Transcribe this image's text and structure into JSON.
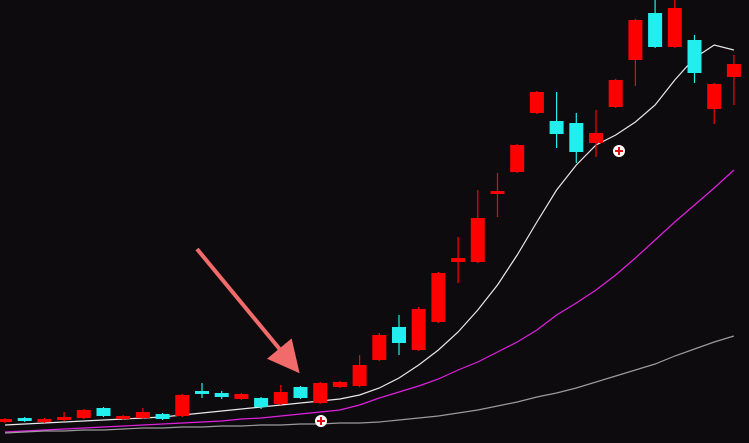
{
  "chart_data": {
    "type": "candlestick",
    "up_color": "#ff0000",
    "down_color": "#22eeee",
    "ylim": [
      0,
      443
    ],
    "open": [
      21,
      25,
      21,
      23,
      25,
      35,
      24,
      25,
      29,
      27,
      52,
      50,
      44,
      45,
      39,
      56,
      40,
      56,
      57,
      83,
      116,
      93,
      121,
      181,
      181,
      249,
      271,
      330,
      322,
      320,
      300,
      336,
      383,
      430,
      396,
      403,
      334,
      366
    ],
    "high": [
      25,
      26,
      25,
      31,
      34,
      36,
      28,
      35,
      30,
      49,
      60,
      52,
      50,
      46,
      58,
      57,
      61,
      62,
      88,
      110,
      128,
      136,
      171,
      206,
      253,
      270,
      299,
      352,
      351,
      330,
      333,
      364,
      424,
      443,
      443,
      408,
      360,
      388
    ],
    "low": [
      20,
      21,
      20,
      22,
      24,
      26,
      23,
      24,
      23,
      26,
      45,
      44,
      43,
      34,
      38,
      44,
      39,
      55,
      56,
      82,
      88,
      92,
      120,
      160,
      180,
      226,
      270,
      329,
      295,
      280,
      286,
      335,
      357,
      395,
      395,
      360,
      319,
      338
    ],
    "close": [
      24,
      22,
      24,
      26,
      33,
      27,
      27,
      31,
      24,
      48,
      49,
      46,
      49,
      36,
      51,
      45,
      60,
      61,
      78,
      108,
      100,
      134,
      170,
      185,
      225,
      252,
      298,
      351,
      309,
      291,
      310,
      363,
      423,
      396,
      435,
      370,
      359,
      379
    ],
    "ma_lines": [
      {
        "color": "#e8e8e8",
        "values": [
          18,
          19,
          20,
          21,
          22,
          23,
          24,
          25,
          26,
          28,
          30,
          32,
          34,
          36,
          38,
          40,
          42,
          44,
          48,
          55,
          65,
          78,
          93,
          111,
          133,
          158,
          188,
          221,
          253,
          278,
          298,
          308,
          321,
          338,
          363,
          385,
          398,
          393
        ]
      },
      {
        "color": "#e020e0",
        "values": [
          11,
          12,
          13,
          14,
          15,
          16,
          17,
          18,
          19,
          20,
          21,
          22,
          24,
          25,
          27,
          29,
          31,
          33,
          38,
          45,
          51,
          57,
          64,
          73,
          81,
          91,
          101,
          113,
          128,
          140,
          153,
          168,
          185,
          203,
          221,
          238,
          255,
          273
        ]
      },
      {
        "color": "#9a9a9a",
        "values": [
          10,
          11,
          12,
          12,
          13,
          13,
          14,
          15,
          15,
          16,
          16,
          17,
          17,
          18,
          18,
          19,
          19,
          20,
          20,
          21,
          23,
          25,
          27,
          30,
          33,
          37,
          41,
          46,
          50,
          55,
          61,
          67,
          73,
          79,
          87,
          94,
          101,
          107
        ]
      }
    ]
  }
}
